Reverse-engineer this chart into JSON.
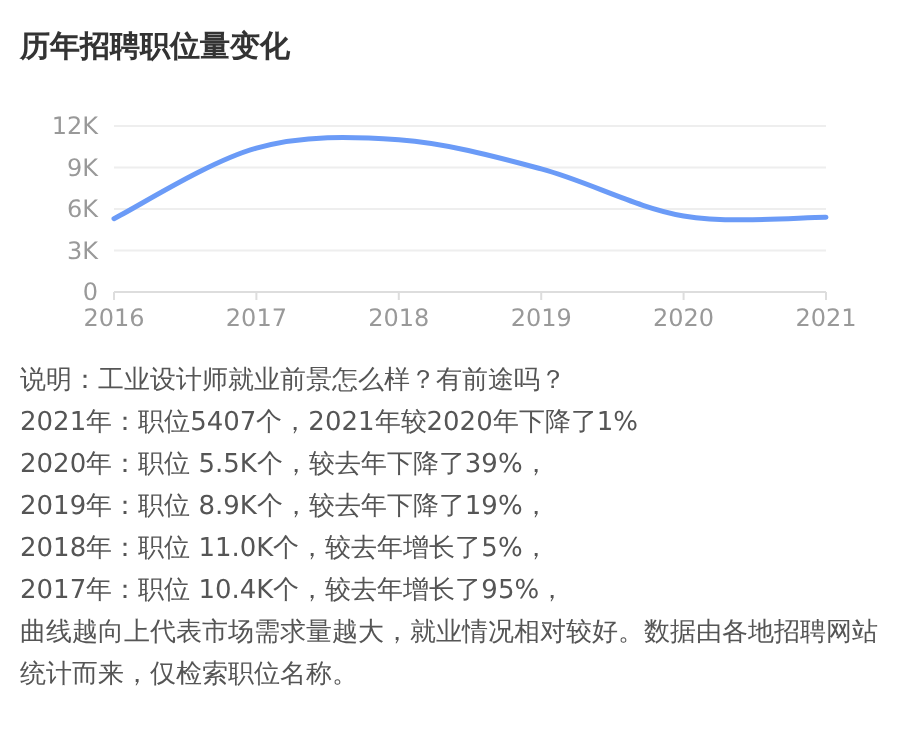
{
  "chart_data": {
    "type": "line",
    "title": "历年招聘职位量变化",
    "x": [
      2016,
      2017,
      2018,
      2019,
      2020,
      2021
    ],
    "series": [
      {
        "color": "#6b9bf7",
        "values": [
          5.3,
          10.4,
          11.0,
          8.9,
          5.5,
          5.4
        ]
      }
    ],
    "xlim": [
      2016,
      2021
    ],
    "xticks": [
      2016,
      2017,
      2018,
      2019,
      2020,
      2021
    ],
    "ylim": [
      0,
      12
    ],
    "yticks": [
      {
        "value": 0,
        "label": "0"
      },
      {
        "value": 3,
        "label": "3K"
      },
      {
        "value": 6,
        "label": "6K"
      },
      {
        "value": 9,
        "label": "9K"
      },
      {
        "value": 12,
        "label": "12K"
      }
    ],
    "grid": "y",
    "marker": "none",
    "line_style": "solid",
    "annotations": [
      "说明：工业设计师就业前景怎么样？有前途吗？",
      "2021年：职位5407个，2021年较2020年下降了1%",
      "2020年：职位 5.5K个，较去年下降了39%，",
      "2019年：职位 8.9K个，较去年下降了19%，",
      "2018年：职位 11.0K个，较去年增长了5%，",
      "2017年：职位 10.4K个，较去年增长了95%，",
      "曲线越向上代表市场需求量越大，就业情况相对较好。数据由各地招聘网站统计而来，仅检索职位名称。"
    ]
  }
}
